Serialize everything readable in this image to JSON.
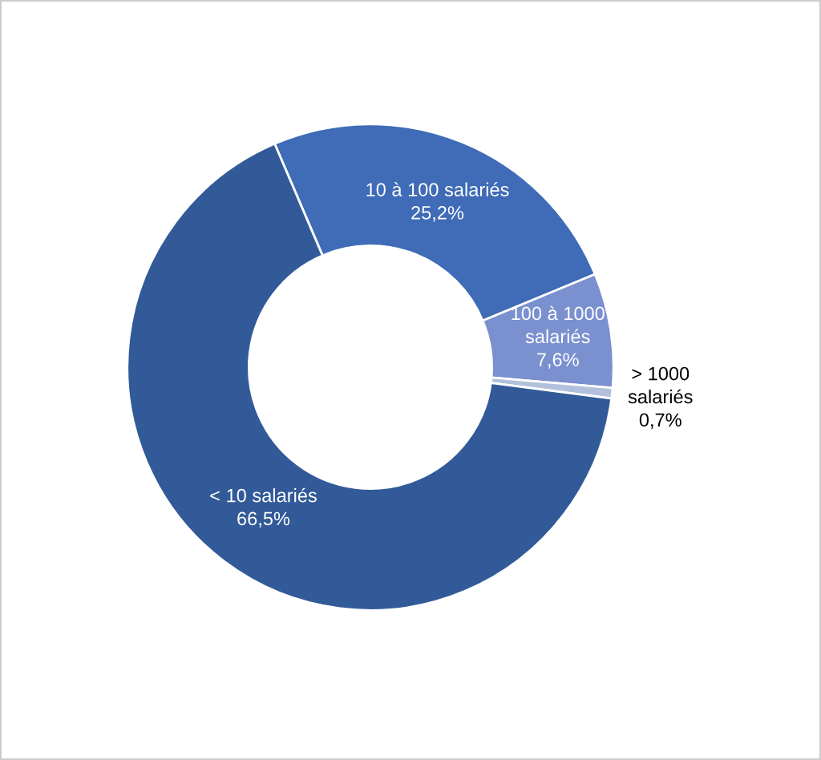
{
  "chart_data": {
    "type": "donut",
    "categories": [
      "10 à 100 salariés",
      "100 à 1000 salariés",
      "> 1000 salariés",
      "< 10 salariés"
    ],
    "values": [
      25.2,
      7.6,
      0.7,
      66.5
    ],
    "value_labels": [
      "25,2%",
      "7,6%",
      "0,7%",
      "66,5%"
    ],
    "colors": [
      "#3f6bb7",
      "#7a90cf",
      "#b3c0dc",
      "#325a98"
    ],
    "legend": false
  }
}
